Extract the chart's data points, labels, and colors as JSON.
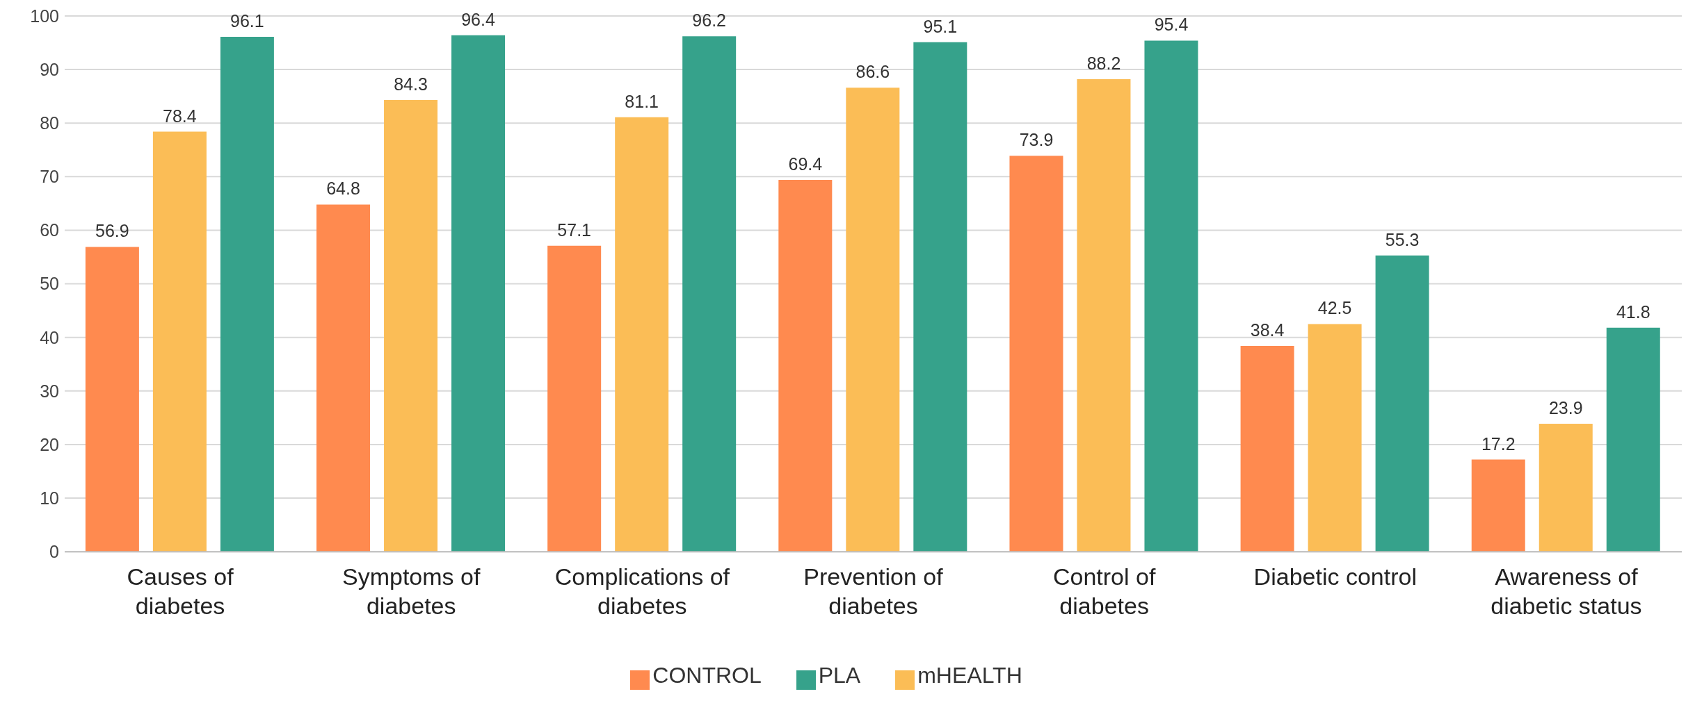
{
  "chart_data": {
    "type": "bar",
    "categories": [
      "Causes of diabetes",
      "Symptoms of diabetes",
      "Complications of diabetes",
      "Prevention of diabetes",
      "Control of diabetes",
      "Diabetic control",
      "Awareness of diabetic status"
    ],
    "series": [
      {
        "name": "CONTROL",
        "color": "#ff8a4f",
        "values": [
          56.9,
          64.8,
          57.1,
          69.4,
          73.9,
          38.4,
          17.2
        ]
      },
      {
        "name": "mHEALTH",
        "color": "#fbbd56",
        "values": [
          78.4,
          84.3,
          81.1,
          86.6,
          88.2,
          42.5,
          23.9
        ]
      },
      {
        "name": "PLA",
        "color": "#36a28b",
        "values": [
          96.1,
          96.4,
          96.2,
          95.1,
          95.4,
          55.3,
          41.8
        ]
      }
    ],
    "ylim": [
      0,
      100
    ],
    "yticks": [
      0,
      10,
      20,
      30,
      40,
      50,
      60,
      70,
      80,
      90,
      100
    ],
    "grid": "y",
    "legend": "bottom",
    "data_labels": true
  }
}
